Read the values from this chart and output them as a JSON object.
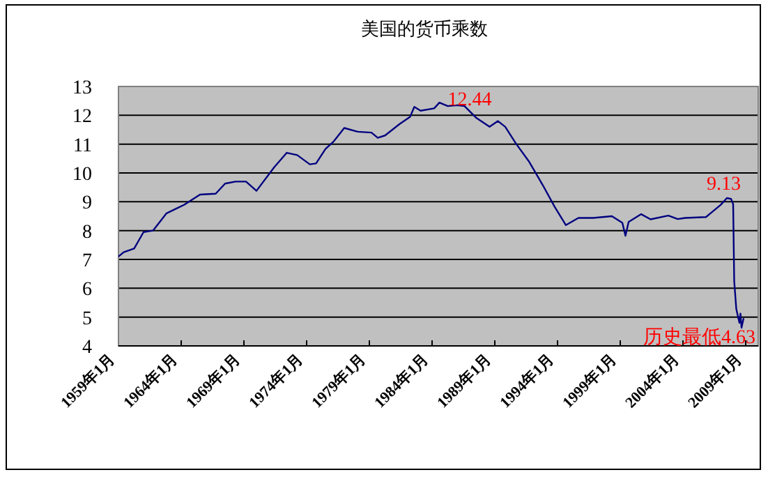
{
  "chart_data": {
    "type": "line",
    "title": "美国的货币乘数",
    "x": [
      "1959-01",
      "1959-06",
      "1960-04",
      "1961-01",
      "1961-10",
      "1962-11",
      "1964-04",
      "1965-07",
      "1966-10",
      "1967-07",
      "1968-05",
      "1969-03",
      "1970-01",
      "1971-06",
      "1972-06",
      "1973-04",
      "1974-04",
      "1974-10",
      "1975-07",
      "1976-03",
      "1977-01",
      "1978-02",
      "1979-03",
      "1979-09",
      "1980-04",
      "1981-06",
      "1982-04",
      "1982-08",
      "1983-02",
      "1984-03",
      "1984-08",
      "1985-04",
      "1986-01",
      "1986-08",
      "1987-07",
      "1988-08",
      "1989-04",
      "1989-11",
      "1990-09",
      "1991-10",
      "1992-11",
      "1993-10",
      "1994-09",
      "1995-09",
      "1996-11",
      "1998-05",
      "1999-03",
      "1999-06",
      "1999-09",
      "2000-09",
      "2001-06",
      "2002-11",
      "2003-08",
      "2004-03",
      "2005-11",
      "2007-01",
      "2007-07",
      "2007-11",
      "2008-01",
      "2008-02",
      "2008-04",
      "2008-07",
      "2008-08",
      "2008-09",
      "2008-11"
    ],
    "series": [
      {
        "color": "#000080",
        "values": [
          7.1,
          7.25,
          7.38,
          7.95,
          8.0,
          8.6,
          8.9,
          9.25,
          9.28,
          9.63,
          9.7,
          9.7,
          9.38,
          10.2,
          10.7,
          10.62,
          10.3,
          10.33,
          10.83,
          11.1,
          11.56,
          11.43,
          11.4,
          11.22,
          11.3,
          11.7,
          11.95,
          12.29,
          12.16,
          12.24,
          12.44,
          12.32,
          12.35,
          12.32,
          11.92,
          11.6,
          11.8,
          11.6,
          11.03,
          10.38,
          9.57,
          8.84,
          8.19,
          8.44,
          8.44,
          8.5,
          8.27,
          7.82,
          8.3,
          8.57,
          8.39,
          8.52,
          8.4,
          8.44,
          8.47,
          8.89,
          9.13,
          9.1,
          8.92,
          6.25,
          5.28,
          4.8,
          5.12,
          4.63,
          4.96
        ]
      }
    ],
    "xlim": [
      "1959-01",
      "2010-01"
    ],
    "xticks": [
      {
        "value": "1959-01",
        "label": "1959年1月"
      },
      {
        "value": "1964-01",
        "label": "1964年1月"
      },
      {
        "value": "1969-01",
        "label": "1969年1月"
      },
      {
        "value": "1974-01",
        "label": "1974年1月"
      },
      {
        "value": "1979-01",
        "label": "1979年1月"
      },
      {
        "value": "1984-01",
        "label": "1984年1月"
      },
      {
        "value": "1989-01",
        "label": "1989年1月"
      },
      {
        "value": "1994-01",
        "label": "1994年1月"
      },
      {
        "value": "1999-01",
        "label": "1999年1月"
      },
      {
        "value": "2004-01",
        "label": "2004年1月"
      },
      {
        "value": "2009-01",
        "label": "2009年1月"
      }
    ],
    "ylim": [
      4,
      13
    ],
    "yticks": [
      4,
      5,
      6,
      7,
      8,
      9,
      10,
      11,
      12,
      13
    ],
    "grid": "y",
    "marker": "none",
    "line_style": "solid",
    "annotations": [
      {
        "text": "12.44",
        "x": "1984-08",
        "y": 12.44
      },
      {
        "text": "9.13",
        "x": "2007-07",
        "y": 9.13
      },
      {
        "text": "历史最低4.63",
        "x": "2008-09",
        "y": 4.63
      }
    ]
  }
}
